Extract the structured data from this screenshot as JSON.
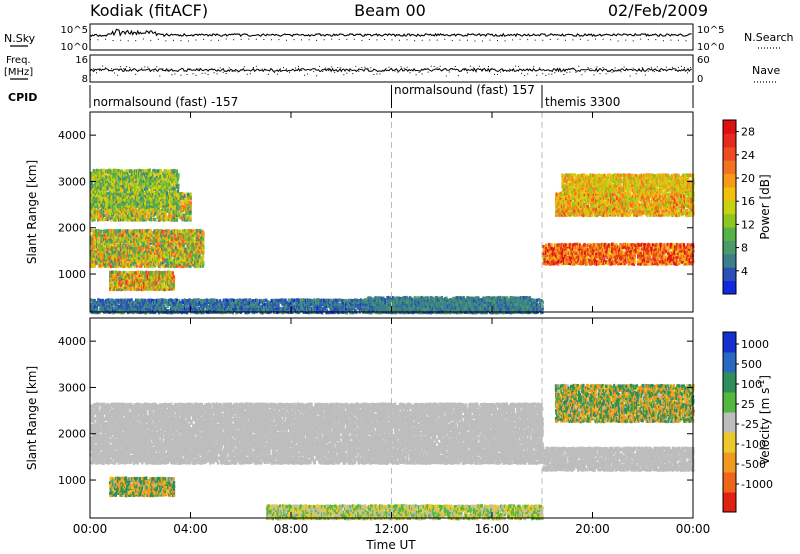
{
  "header": {
    "radar": "Kodiak (fitACF)",
    "beam": "Beam 00",
    "date": "02/Feb/2009"
  },
  "top_panels": {
    "nsky": {
      "label": "N.Sky",
      "ticks": [
        "10^5",
        "10^0"
      ]
    },
    "nsearch": {
      "label": "N.Search",
      "ticks": [
        "10^5",
        "10^0"
      ]
    },
    "freq": {
      "label_line1": "Freq.",
      "label_line2": "[MHz]",
      "ticks": [
        "16",
        "8"
      ]
    },
    "nave": {
      "label": "Nave",
      "ticks": [
        "60",
        "0"
      ]
    },
    "cpid": {
      "label": "CPID",
      "segments": [
        {
          "text": "normalsound (fast) -157",
          "start": "00:00"
        },
        {
          "text": "normalsound (fast) 157",
          "start": "12:00"
        },
        {
          "text": "themis 3300",
          "start": "18:00"
        }
      ]
    }
  },
  "chart_data": [
    {
      "type": "heatmap",
      "title": "Power",
      "xlabel": "",
      "ylabel": "Slant Range [km]",
      "x_range": [
        "00:00",
        "24:00"
      ],
      "ylim": [
        180,
        4500
      ],
      "yticks": [
        "1000",
        "2000",
        "3000",
        "4000"
      ],
      "colorbar": {
        "label": "Power [dB]",
        "ticks": [
          "4",
          "8",
          "12",
          "16",
          "20",
          "24",
          "28"
        ],
        "range": [
          0,
          30
        ],
        "colors": [
          "#1028e0",
          "#2a4fb8",
          "#3a7f8a",
          "#4a9a6a",
          "#58b048",
          "#8fc61e",
          "#c7d210",
          "#f2c10e",
          "#f89a18",
          "#f57320",
          "#ef4a22",
          "#e52a1e",
          "#dd1010"
        ]
      },
      "regions": [
        {
          "name": "near-range ground scatter",
          "time": [
            "00:00",
            "18:00"
          ],
          "range_km": [
            200,
            500
          ],
          "power_db": [
            2,
            8
          ]
        },
        {
          "name": "near-range ground scatter (late)",
          "time": [
            "11:00",
            "17:30"
          ],
          "range_km": [
            200,
            550
          ],
          "power_db": [
            4,
            8
          ]
        },
        {
          "name": "early echo band 1",
          "time": [
            "00:00",
            "04:30"
          ],
          "range_km": [
            1200,
            2000
          ],
          "power_db": [
            6,
            24
          ]
        },
        {
          "name": "early echo band 2",
          "time": [
            "00:00",
            "04:00"
          ],
          "range_km": [
            2200,
            2800
          ],
          "power_db": [
            6,
            22
          ]
        },
        {
          "name": "early echo band 3",
          "time": [
            "00:00",
            "03:30"
          ],
          "range_km": [
            2500,
            3300
          ],
          "power_db": [
            6,
            18
          ]
        },
        {
          "name": "early echo patch",
          "time": [
            "00:45",
            "03:20"
          ],
          "range_km": [
            700,
            1100
          ],
          "power_db": [
            8,
            26
          ]
        },
        {
          "name": "late strong band",
          "time": [
            "18:00",
            "24:00"
          ],
          "range_km": [
            1250,
            1700
          ],
          "power_db": [
            16,
            30
          ]
        },
        {
          "name": "late mid band",
          "time": [
            "18:30",
            "24:00"
          ],
          "range_km": [
            2300,
            2800
          ],
          "power_db": [
            12,
            24
          ]
        },
        {
          "name": "late upper band",
          "time": [
            "18:45",
            "24:00"
          ],
          "range_km": [
            2800,
            3200
          ],
          "power_db": [
            12,
            22
          ]
        }
      ],
      "markers_time": [
        "12:00",
        "18:00"
      ]
    },
    {
      "type": "heatmap",
      "title": "Velocity",
      "xlabel": "Time UT",
      "ylabel": "Slant Range [km]",
      "x_range": [
        "00:00",
        "24:00"
      ],
      "xticks": [
        "00:00",
        "04:00",
        "08:00",
        "12:00",
        "16:00",
        "20:00",
        "00:00"
      ],
      "ylim": [
        180,
        4500
      ],
      "yticks": [
        "1000",
        "2000",
        "3000",
        "4000"
      ],
      "colorbar": {
        "label": "Velocity [m s-1]",
        "label_base": "Velocity [m s",
        "label_exp": "-1",
        "label_end": "]",
        "ticks": [
          "1000",
          "500",
          "100",
          "25",
          "-25",
          "-100",
          "-500",
          "-1000"
        ],
        "colors": [
          "#1530d0",
          "#2a68c0",
          "#2f8f5a",
          "#52b840",
          "#bdbdbd",
          "#ecc82a",
          "#f09a20",
          "#ef6418",
          "#e02010"
        ]
      },
      "regions": [
        {
          "name": "ground scatter (grey)",
          "time": [
            "00:00",
            "18:00"
          ],
          "range_km": [
            1400,
            2700
          ],
          "velocity_ms": [
            -25,
            25
          ]
        },
        {
          "name": "near-range slow flow",
          "time": [
            "07:00",
            "18:00"
          ],
          "range_km": [
            200,
            500
          ],
          "velocity_ms": [
            -100,
            100
          ]
        },
        {
          "name": "early mixed patch",
          "time": [
            "00:45",
            "03:20"
          ],
          "range_km": [
            700,
            1100
          ],
          "velocity_ms": [
            -500,
            500
          ]
        },
        {
          "name": "late ground scatter band",
          "time": [
            "18:00",
            "24:00"
          ],
          "range_km": [
            1250,
            1750
          ],
          "velocity_ms": [
            -25,
            25
          ]
        },
        {
          "name": "late mixed upper band",
          "time": [
            "18:30",
            "24:00"
          ],
          "range_km": [
            2300,
            3100
          ],
          "velocity_ms": [
            -500,
            500
          ]
        }
      ],
      "markers_time": [
        "12:00",
        "18:00"
      ]
    }
  ]
}
